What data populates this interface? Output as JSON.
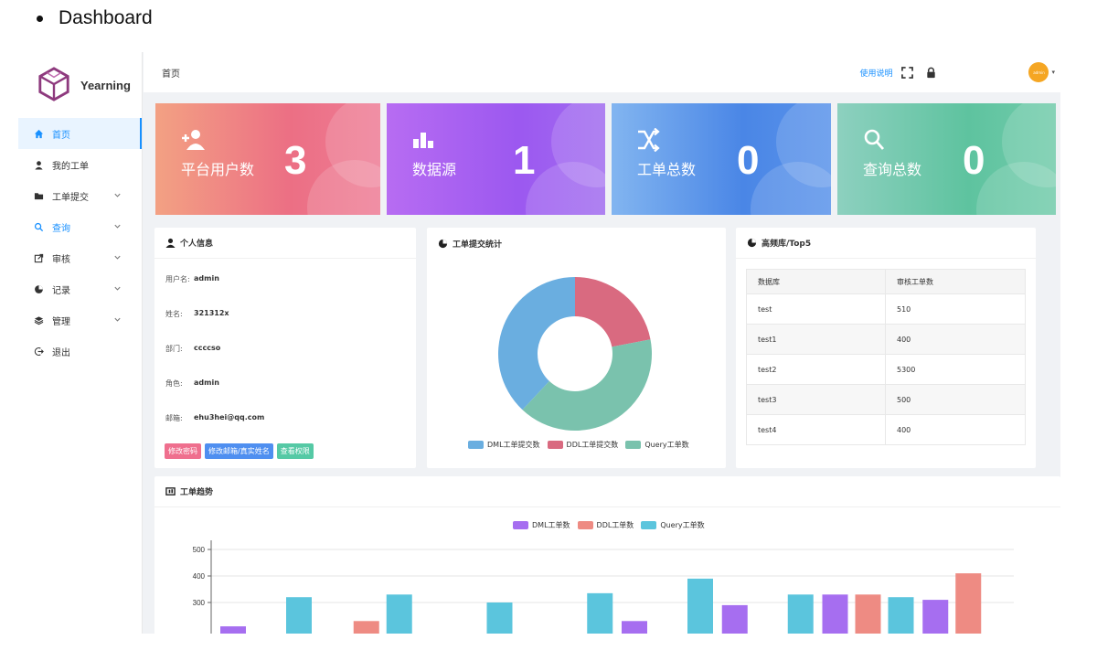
{
  "heading": "Dashboard",
  "app": {
    "name": "Yearning",
    "breadcrumb": "首页",
    "help_label": "使用说明",
    "avatar_text": "admin"
  },
  "sidebar": {
    "items": [
      {
        "label": "首页",
        "icon": "home-icon"
      },
      {
        "label": "我的工单",
        "icon": "user-icon"
      },
      {
        "label": "工单提交",
        "icon": "folder-icon"
      },
      {
        "label": "查询",
        "icon": "search-icon"
      },
      {
        "label": "审核",
        "icon": "external-link-icon"
      },
      {
        "label": "记录",
        "icon": "pie-icon"
      },
      {
        "label": "管理",
        "icon": "stack-icon"
      },
      {
        "label": "退出",
        "icon": "logout-icon"
      }
    ]
  },
  "stats": [
    {
      "label": "平台用户数",
      "value": "3",
      "icon": "add-user-icon"
    },
    {
      "label": "数据源",
      "value": "1",
      "icon": "bar-icon"
    },
    {
      "label": "工单总数",
      "value": "0",
      "icon": "shuffle-icon"
    },
    {
      "label": "查询总数",
      "value": "0",
      "icon": "search-icon"
    }
  ],
  "profile": {
    "title": "个人信息",
    "rows": [
      {
        "key": "用户名:",
        "value": "admin"
      },
      {
        "key": "姓名:",
        "value": "321312x"
      },
      {
        "key": "部门:",
        "value": "ccccso"
      },
      {
        "key": "角色:",
        "value": "admin"
      },
      {
        "key": "邮箱:",
        "value": "ehu3hei@qq.com"
      }
    ],
    "buttons": [
      "修改密码",
      "修改邮箱/真实姓名",
      "查看权限"
    ]
  },
  "submit_stats": {
    "title": "工单提交统计"
  },
  "top5": {
    "title": "高频库/Top5",
    "headers": [
      "数据库",
      "审核工单数"
    ],
    "rows": [
      [
        "test",
        "510"
      ],
      [
        "test1",
        "400"
      ],
      [
        "test2",
        "5300"
      ],
      [
        "test3",
        "500"
      ],
      [
        "test4",
        "400"
      ]
    ]
  },
  "trend": {
    "title": "工单趋势"
  },
  "colors": {
    "primary": "#1890ff",
    "dml": "#6aaee0",
    "ddl": "#d96a80",
    "query": "#7ac2ad",
    "bar_dml": "#a66ef0",
    "bar_ddl": "#ee8b83",
    "bar_query": "#5bc5dd"
  },
  "chart_data": [
    {
      "type": "pie",
      "donut": true,
      "legend_position": "bottom",
      "labels": [
        "DML工单提交数",
        "DDL工单提交数",
        "Query工单数"
      ],
      "values": [
        38,
        22,
        40
      ]
    },
    {
      "type": "bar",
      "legend_position": "top",
      "y_ticks": [
        500,
        400,
        300
      ],
      "series": [
        {
          "name": "DML工单数",
          "values": [
            210,
            null,
            null,
            null,
            230,
            290,
            330,
            310
          ]
        },
        {
          "name": "DDL工单数",
          "values": [
            null,
            230,
            null,
            null,
            null,
            null,
            330,
            410
          ]
        },
        {
          "name": "Query工单数",
          "values": [
            320,
            330,
            300,
            335,
            390,
            330,
            320,
            null
          ]
        }
      ]
    }
  ]
}
